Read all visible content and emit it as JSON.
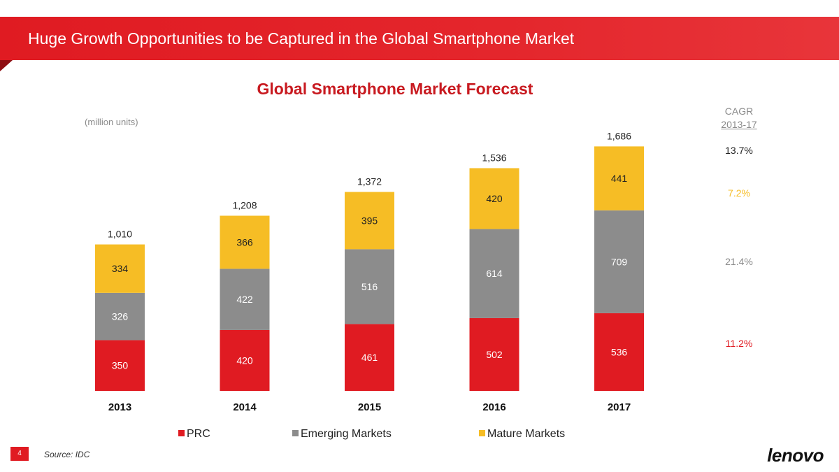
{
  "header": {
    "title": "Huge Growth Opportunities to be Captured in the Global Smartphone Market"
  },
  "chart_data": {
    "type": "bar",
    "stacked": true,
    "title": "Global Smartphone Market Forecast",
    "unit_label": "(million units)",
    "categories": [
      "2013",
      "2014",
      "2015",
      "2016",
      "2017"
    ],
    "series": [
      {
        "name": "PRC",
        "color": "#e01b22",
        "values": [
          350,
          420,
          461,
          502,
          536
        ]
      },
      {
        "name": "Emerging Markets",
        "color": "#8c8c8c",
        "values": [
          326,
          422,
          516,
          614,
          709
        ]
      },
      {
        "name": "Mature Markets",
        "color": "#f6bd25",
        "values": [
          334,
          366,
          395,
          420,
          441
        ]
      }
    ],
    "totals": [
      "1,010",
      "1,208",
      "1,372",
      "1,536",
      "1,686"
    ],
    "ylim": [
      0,
      1900
    ],
    "grid": false,
    "legend_position": "bottom"
  },
  "cagr": {
    "label": "CAGR",
    "period": "2013-17",
    "total": {
      "value": "13.7%",
      "color": "#222222"
    },
    "mature": {
      "value": "7.2%",
      "color": "#f6bd25"
    },
    "emerging": {
      "value": "21.4%",
      "color": "#8c8c8c"
    },
    "prc": {
      "value": "11.2%",
      "color": "#e01b22"
    }
  },
  "footer": {
    "page_number": "4",
    "source": "Source:  IDC",
    "logo": "lenovo"
  }
}
